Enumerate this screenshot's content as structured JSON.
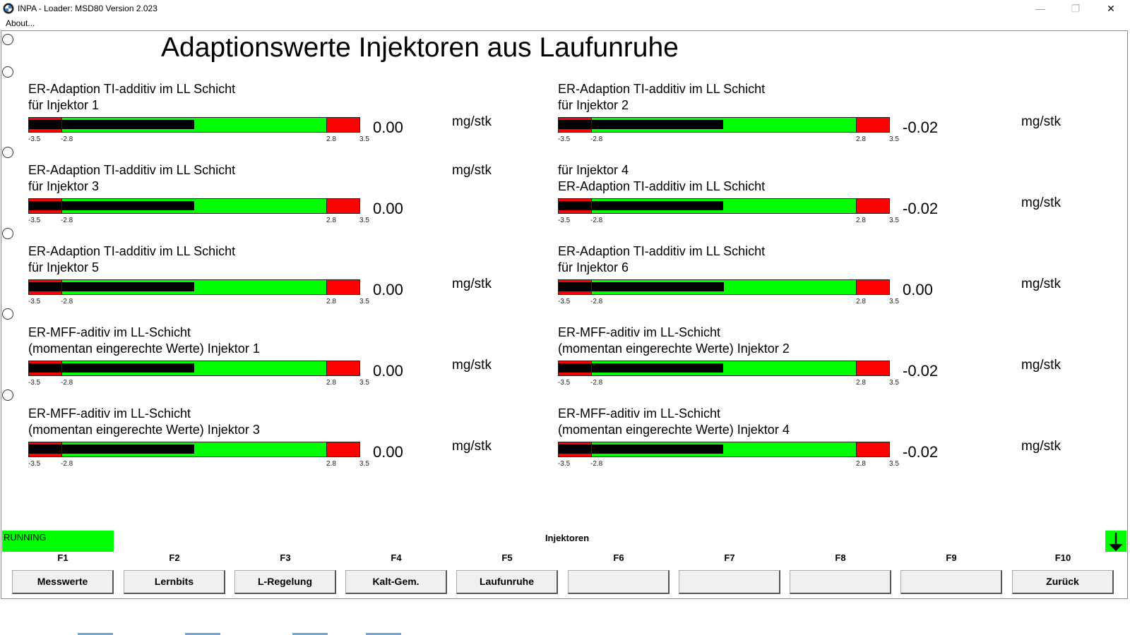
{
  "window": {
    "title": "INPA - Loader:  MSD80 Version 2.023",
    "minimize": "—",
    "maximize": "❐",
    "close": "✕"
  },
  "menu": {
    "about": "About..."
  },
  "page_title": "Adaptionswerte Injektoren aus Laufunruhe",
  "scale": {
    "min": "-3.5",
    "warn_low": "-2.8",
    "warn_high": "2.8",
    "max": "3.5"
  },
  "meters": [
    {
      "line1": "ER-Adaption TI-additiv im LL Schicht",
      "line2": "für Injektor 1",
      "value": "0.00",
      "fill_pct": 50,
      "unit": "mg/stk"
    },
    {
      "line1": "ER-Adaption TI-additiv im LL Schicht",
      "line2": "für Injektor 2",
      "value": "-0.02",
      "fill_pct": 49.7,
      "unit": "mg/stk"
    },
    {
      "line1": "ER-Adaption TI-additiv im LL Schicht",
      "line2": "für Injektor 3",
      "value": "0.00",
      "fill_pct": 50,
      "unit": "mg/stk"
    },
    {
      "line1": "für Injektor 4",
      "line2": "ER-Adaption TI-additiv im LL Schicht",
      "value": "-0.02",
      "fill_pct": 49.7,
      "unit": "mg/stk"
    },
    {
      "line1": "ER-Adaption TI-additiv im LL Schicht",
      "line2": "für Injektor 5",
      "value": "0.00",
      "fill_pct": 50,
      "unit": "mg/stk"
    },
    {
      "line1": "ER-Adaption TI-additiv im LL Schicht",
      "line2": "für Injektor 6",
      "value": "0.00",
      "fill_pct": 50,
      "unit": "mg/stk"
    },
    {
      "line1": "ER-MFF-aditiv im LL-Schicht",
      "line2": "(momentan eingerechte Werte) Injektor 1",
      "value": "0.00",
      "fill_pct": 50,
      "unit": "mg/stk"
    },
    {
      "line1": "ER-MFF-aditiv im LL-Schicht",
      "line2": "(momentan eingerechte Werte) Injektor 2",
      "value": "-0.02",
      "fill_pct": 49.7,
      "unit": "mg/stk"
    },
    {
      "line1": "ER-MFF-aditiv im LL-Schicht",
      "line2": "(momentan eingerechte Werte) Injektor 3",
      "value": "0.00",
      "fill_pct": 50,
      "unit": "mg/stk"
    },
    {
      "line1": "ER-MFF-aditiv im LL-Schicht",
      "line2": "(momentan eingerechte Werte) Injektor 4",
      "value": "-0.02",
      "fill_pct": 49.7,
      "unit": "mg/stk"
    }
  ],
  "status": {
    "running": "RUNNING",
    "section": "Injektoren",
    "arrow": "↓"
  },
  "fkeys": [
    {
      "key": "F1",
      "label": "Messwerte"
    },
    {
      "key": "F2",
      "label": "Lernbits"
    },
    {
      "key": "F3",
      "label": "L-Regelung"
    },
    {
      "key": "F4",
      "label": "Kalt-Gem."
    },
    {
      "key": "F5",
      "label": "Laufunruhe"
    },
    {
      "key": "F6",
      "label": ""
    },
    {
      "key": "F7",
      "label": ""
    },
    {
      "key": "F8",
      "label": ""
    },
    {
      "key": "F9",
      "label": ""
    },
    {
      "key": "F10",
      "label": "Zurück"
    }
  ],
  "colors": {
    "ok": "#00ff00",
    "limit": "#ff0000",
    "bar": "#000000"
  }
}
